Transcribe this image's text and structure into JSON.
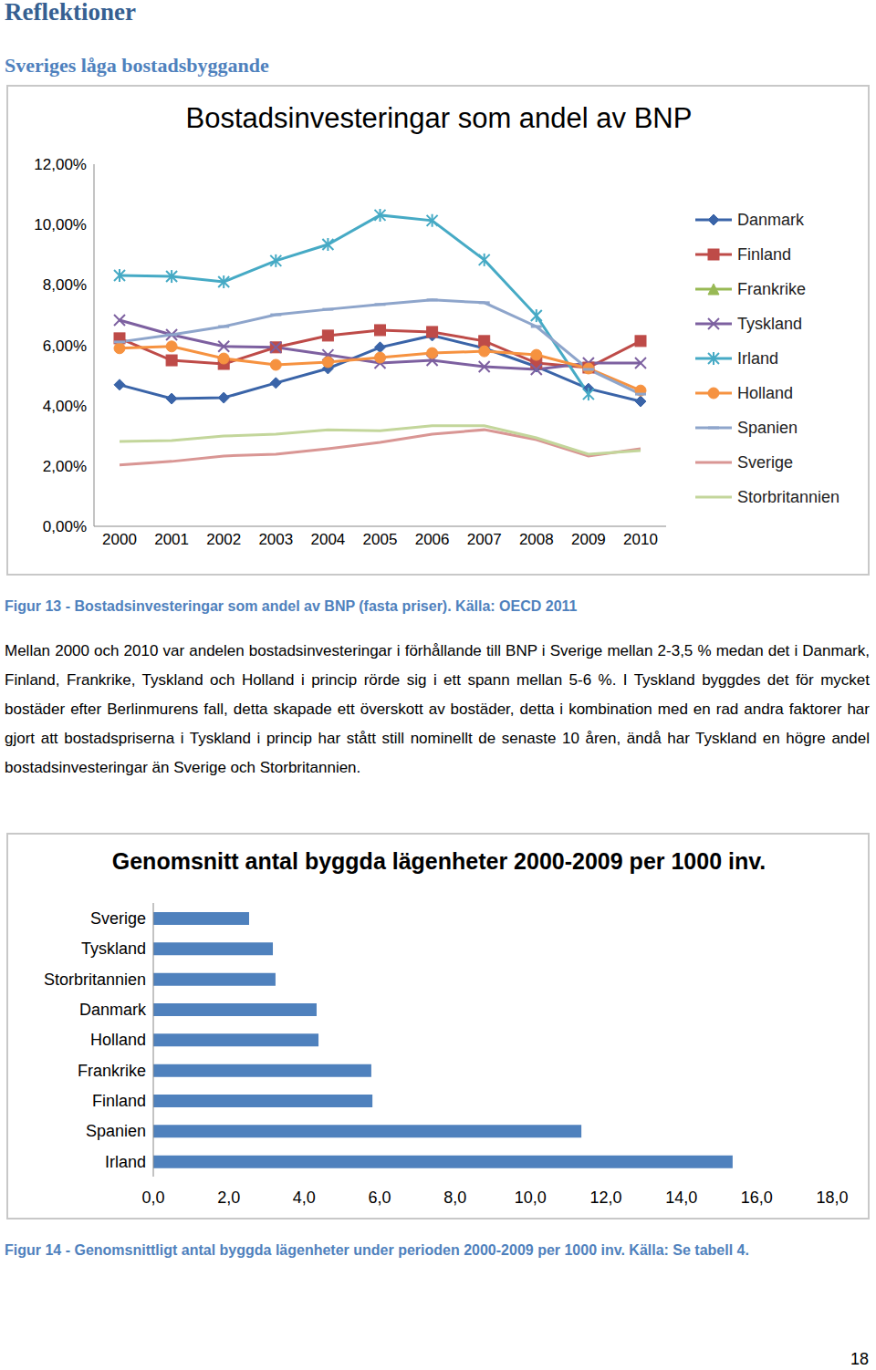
{
  "header": {
    "title": "Reflektioner",
    "subtitle": "Sveriges låga bostadsbyggande"
  },
  "chart_data": [
    {
      "type": "line",
      "title": "Bostadsinvesteringar som andel av BNP",
      "categories": [
        "2000",
        "2001",
        "2002",
        "2003",
        "2004",
        "2005",
        "2006",
        "2007",
        "2008",
        "2009",
        "2010"
      ],
      "series": [
        {
          "name": "Danmark",
          "color": "#3A64A8",
          "marker": "diamond",
          "values": [
            4.69,
            4.23,
            4.26,
            4.75,
            5.23,
            5.93,
            6.32,
            5.9,
            5.29,
            4.56,
            4.14
          ]
        },
        {
          "name": "Finland",
          "color": "#BE4B48",
          "marker": "square",
          "values": [
            6.23,
            5.5,
            5.38,
            5.93,
            6.32,
            6.5,
            6.44,
            6.14,
            5.41,
            5.26,
            6.14
          ]
        },
        {
          "name": "Frankrike",
          "color": "#98B954",
          "marker": "triangle",
          "values": [
            null,
            null,
            null,
            null,
            null,
            null,
            null,
            null,
            null,
            null,
            null
          ]
        },
        {
          "name": "Tyskland",
          "color": "#7D60A0",
          "marker": "x",
          "values": [
            6.83,
            6.35,
            5.96,
            5.93,
            5.68,
            5.41,
            5.5,
            5.29,
            5.2,
            5.41,
            5.41
          ]
        },
        {
          "name": "Irland",
          "color": "#46AAC5",
          "marker": "star",
          "values": [
            8.31,
            8.28,
            8.1,
            8.8,
            9.34,
            10.31,
            10.13,
            8.83,
            6.98,
            4.38,
            null
          ]
        },
        {
          "name": "Holland",
          "color": "#F69240",
          "marker": "circle",
          "values": [
            5.9,
            5.96,
            5.56,
            5.35,
            5.44,
            5.59,
            5.74,
            5.8,
            5.68,
            5.23,
            4.5
          ]
        },
        {
          "name": "Spanien",
          "color": "#8EA5CB",
          "marker": "dash",
          "values": [
            6.11,
            6.35,
            6.62,
            7.01,
            7.19,
            7.35,
            7.5,
            7.41,
            6.62,
            5.2,
            4.38
          ]
        },
        {
          "name": "Sverige",
          "color": "#D99694",
          "marker": "none",
          "values": [
            2.03,
            2.15,
            2.33,
            2.39,
            2.57,
            2.78,
            3.05,
            3.2,
            2.87,
            2.33,
            2.57
          ]
        },
        {
          "name": "Storbritannien",
          "color": "#C3D69B",
          "marker": "none",
          "values": [
            2.81,
            2.84,
            2.99,
            3.05,
            3.2,
            3.17,
            3.33,
            3.33,
            2.93,
            2.39,
            2.51
          ]
        }
      ],
      "ylim": [
        0,
        12
      ],
      "yticks": [
        {
          "value": 0,
          "label": "0,00%"
        },
        {
          "value": 2,
          "label": "2,00%"
        },
        {
          "value": 4,
          "label": "4,00%"
        },
        {
          "value": 6,
          "label": "6,00%"
        },
        {
          "value": 8,
          "label": "8,00%"
        },
        {
          "value": 10,
          "label": "10,00%"
        },
        {
          "value": 12,
          "label": "12,00%"
        }
      ],
      "grid": false,
      "legend": "right"
    },
    {
      "type": "bar",
      "orientation": "horizontal",
      "title": "Genomsnitt antal byggda lägenheter 2000-2009 per 1000 inv.",
      "categories": [
        "Sverige",
        "Tyskland",
        "Storbritannien",
        "Danmark",
        "Holland",
        "Frankrike",
        "Finland",
        "Spanien",
        "Irland"
      ],
      "values": [
        2.54,
        3.17,
        3.24,
        4.33,
        4.38,
        5.78,
        5.81,
        11.35,
        15.36
      ],
      "color": "#4F81BD",
      "xlim": [
        0,
        18
      ],
      "xticks": [
        {
          "value": 0,
          "label": "0,0"
        },
        {
          "value": 2,
          "label": "2,0"
        },
        {
          "value": 4,
          "label": "4,0"
        },
        {
          "value": 6,
          "label": "6,0"
        },
        {
          "value": 8,
          "label": "8,0"
        },
        {
          "value": 10,
          "label": "10,0"
        },
        {
          "value": 12,
          "label": "12,0"
        },
        {
          "value": 14,
          "label": "14,0"
        },
        {
          "value": 16,
          "label": "16,0"
        },
        {
          "value": 18,
          "label": "18,0"
        }
      ],
      "grid": false
    }
  ],
  "captions": [
    "Figur 13 - Bostadsinvesteringar som andel av BNP (fasta priser). Källa: OECD 2011",
    "Figur 14 - Genomsnittligt antal byggda lägenheter under perioden 2000-2009 per 1000 inv. Källa: Se tabell 4."
  ],
  "body": "Mellan 2000 och 2010 var andelen bostadsinvesteringar i förhållande till BNP i Sverige mellan 2-3,5 % medan det i Danmark, Finland, Frankrike, Tyskland och Holland i princip rörde sig i ett spann mellan 5-6 %. I Tyskland byggdes det för mycket bostäder efter Berlinmurens fall, detta skapade ett överskott av bostäder, detta i kombination med en rad andra faktorer har gjort att bostadspriserna i Tyskland i princip har stått still nominellt de senaste 10 åren, ändå har Tyskland en högre andel bostadsinvesteringar än Sverige och Storbritannien.",
  "page_number": "18"
}
